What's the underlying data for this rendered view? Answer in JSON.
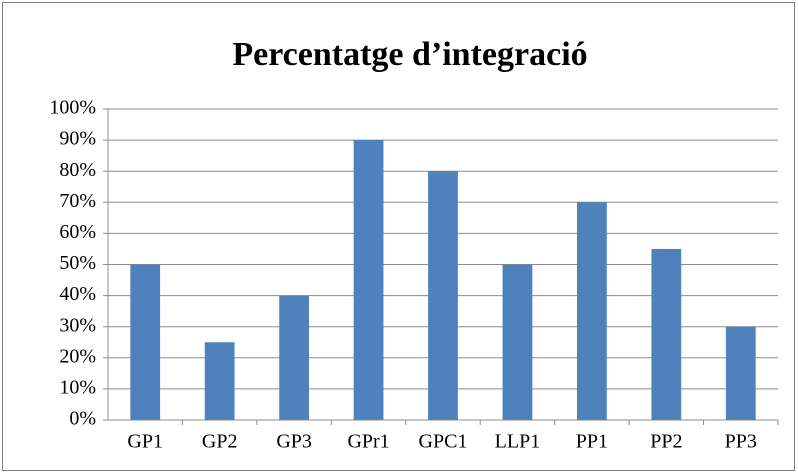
{
  "chart_data": {
    "type": "bar",
    "title": "Percentatge d’integració",
    "categories": [
      "GP1",
      "GP2",
      "GP3",
      "GPr1",
      "GPC1",
      "LLP1",
      "PP1",
      "PP2",
      "PP3"
    ],
    "values": [
      50,
      25,
      40,
      90,
      80,
      50,
      70,
      55,
      30
    ],
    "color": "#4f81bd",
    "ylim": [
      0,
      100
    ],
    "yticks": [
      {
        "value": 0,
        "label": "0%"
      },
      {
        "value": 10,
        "label": "10%"
      },
      {
        "value": 20,
        "label": "20%"
      },
      {
        "value": 30,
        "label": "30%"
      },
      {
        "value": 40,
        "label": "40%"
      },
      {
        "value": 50,
        "label": "50%"
      },
      {
        "value": 60,
        "label": "60%"
      },
      {
        "value": 70,
        "label": "70%"
      },
      {
        "value": 80,
        "label": "80%"
      },
      {
        "value": 90,
        "label": "90%"
      },
      {
        "value": 100,
        "label": "100%"
      }
    ],
    "grid": true
  }
}
